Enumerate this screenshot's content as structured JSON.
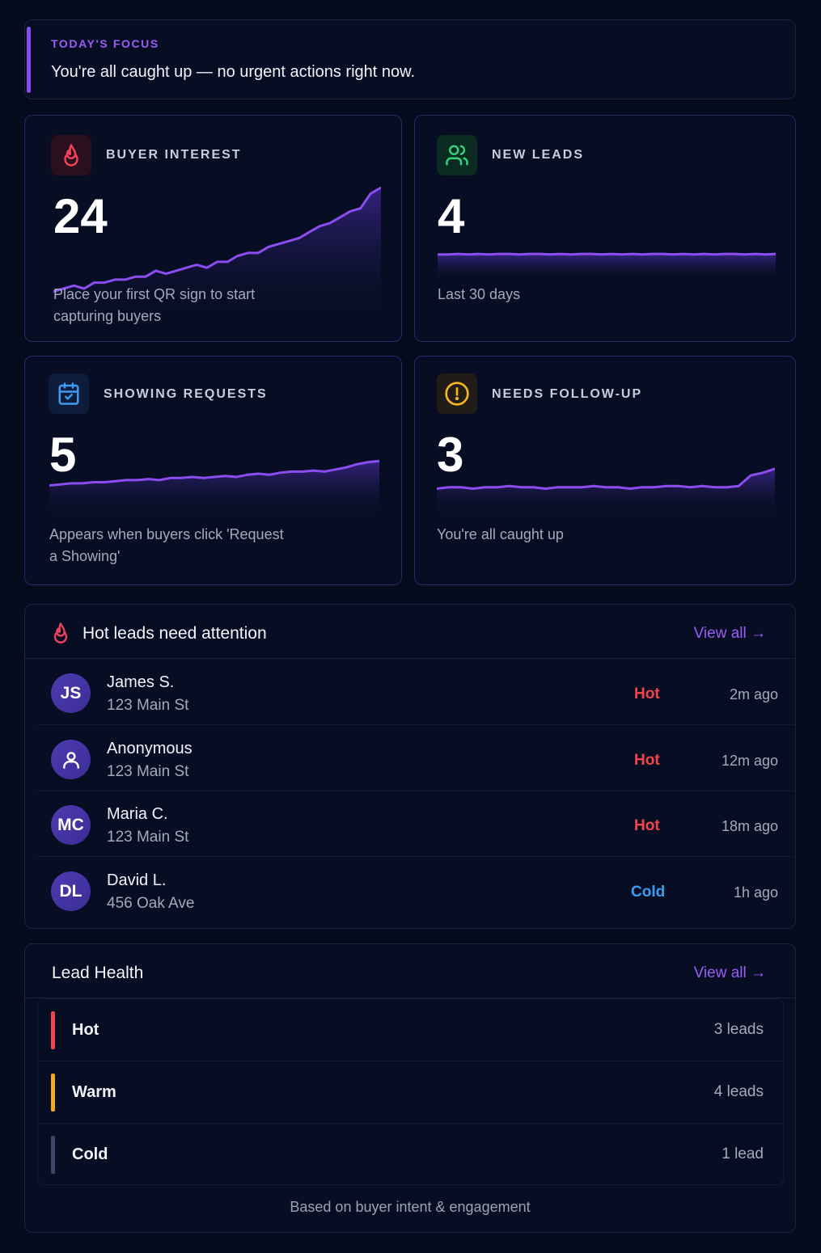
{
  "focus": {
    "label": "TODAY'S FOCUS",
    "text": "You're all caught up — no urgent actions right now."
  },
  "stats": [
    {
      "id": "buyer-interest",
      "label": "BUYER INTEREST",
      "value": "24",
      "subtitle": "Place your first QR sign to start capturing buyers",
      "icon": "flame-icon",
      "icon_color": "#f0435a",
      "icon_bg": "#2a0f1e",
      "trend": [
        3,
        4,
        5,
        4,
        6,
        6,
        7,
        7,
        8,
        8,
        10,
        9,
        10,
        11,
        12,
        11,
        13,
        13,
        15,
        16,
        16,
        18,
        19,
        20,
        21,
        23,
        25,
        26,
        28,
        30,
        31,
        36,
        38
      ]
    },
    {
      "id": "new-leads",
      "label": "NEW LEADS",
      "value": "4",
      "subtitle": "Last 30 days",
      "icon": "users-icon",
      "icon_color": "#2fd67a",
      "icon_bg": "#0b2a22",
      "trend": [
        5,
        5,
        6,
        5,
        6,
        5,
        6,
        6,
        5,
        6,
        6,
        5,
        6,
        5,
        6,
        6,
        5,
        6,
        5,
        6,
        5,
        6,
        6,
        5,
        6,
        5,
        6,
        5,
        6,
        6,
        5,
        6,
        5,
        6
      ]
    },
    {
      "id": "showing-requests",
      "label": "SHOWING REQUESTS",
      "value": "5",
      "subtitle": "Appears when buyers click 'Request a Showing'",
      "icon": "calendar-check-icon",
      "icon_color": "#3b9cf0",
      "icon_bg": "#0c1c3a",
      "trend": [
        3,
        4,
        5,
        5,
        6,
        6,
        7,
        8,
        8,
        9,
        8,
        10,
        10,
        11,
        10,
        11,
        12,
        11,
        13,
        14,
        13,
        15,
        16,
        16,
        17,
        16,
        18,
        20,
        23,
        25,
        26
      ]
    },
    {
      "id": "needs-follow-up",
      "label": "NEEDS FOLLOW-UP",
      "value": "3",
      "subtitle": "You're all caught up",
      "icon": "alert-circle-icon",
      "icon_color": "#f5b51e",
      "icon_bg": "#221c18",
      "trend": [
        4,
        5,
        5,
        4,
        5,
        5,
        6,
        5,
        5,
        4,
        5,
        5,
        5,
        6,
        5,
        5,
        4,
        5,
        5,
        6,
        6,
        5,
        6,
        5,
        5,
        6,
        14,
        16,
        19
      ]
    }
  ],
  "hot_leads": {
    "title": "Hot leads need attention",
    "view_all": "View all →",
    "items": [
      {
        "initials": "JS",
        "name": "James S.",
        "address": "123 Main St",
        "status": "Hot",
        "status_color": "#f2444a",
        "time": "2m ago",
        "icon": ""
      },
      {
        "initials": "",
        "name": "Anonymous",
        "address": "123 Main St",
        "status": "Hot",
        "status_color": "#f2444a",
        "time": "12m ago",
        "icon": "user-icon"
      },
      {
        "initials": "MC",
        "name": "Maria C.",
        "address": "123 Main St",
        "status": "Hot",
        "status_color": "#f2444a",
        "time": "18m ago",
        "icon": ""
      },
      {
        "initials": "DL",
        "name": "David L.",
        "address": "456 Oak Ave",
        "status": "Cold",
        "status_color": "#3b9cf0",
        "time": "1h ago",
        "icon": ""
      }
    ]
  },
  "lead_health": {
    "title": "Lead Health",
    "view_all": "View all →",
    "rows": [
      {
        "name": "Hot",
        "count": "3 leads",
        "color": "#f2444a"
      },
      {
        "name": "Warm",
        "count": "4 leads",
        "color": "#f5a623"
      },
      {
        "name": "Cold",
        "count": "1 lead",
        "color": "#3c4664"
      }
    ],
    "footnote": "Based on buyer intent & engagement"
  }
}
